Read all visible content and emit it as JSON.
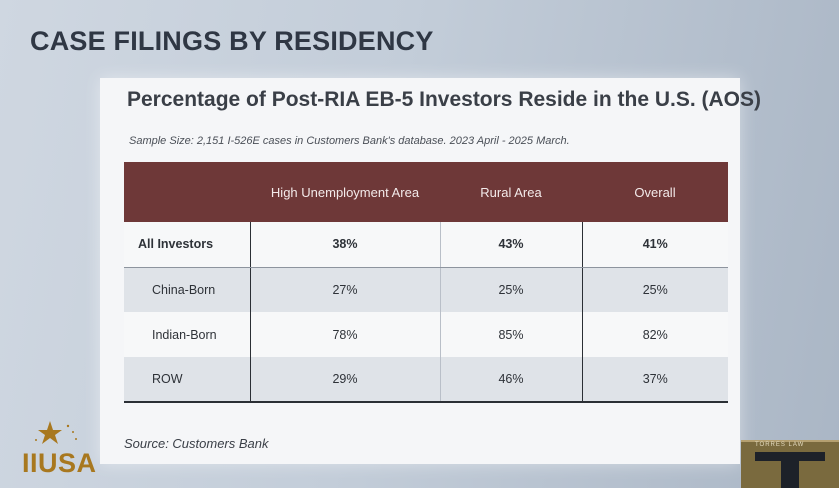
{
  "slide": {
    "heading": "CASE FILINGS BY RESIDENCY"
  },
  "card": {
    "title": "Percentage of Post-RIA EB-5 Investors Reside in the U.S. (AOS)",
    "subtitle": "Sample Size: 2,151 I-526E cases in Customers Bank's database. 2023 April - 2025 March.",
    "source": "Source: Customers Bank"
  },
  "table": {
    "headers": [
      "",
      "High Unemployment Area",
      "Rural Area",
      "Overall"
    ],
    "rows": [
      {
        "label": "All Investors",
        "values": [
          "38%",
          "43%",
          "41%"
        ]
      },
      {
        "label": "China-Born",
        "values": [
          "27%",
          "25%",
          "25%"
        ]
      },
      {
        "label": "Indian-Born",
        "values": [
          "78%",
          "85%",
          "82%"
        ]
      },
      {
        "label": "ROW",
        "values": [
          "29%",
          "46%",
          "37%"
        ]
      }
    ]
  },
  "logos": {
    "left_text": "IIUSA",
    "left_color": "#a8781f",
    "right_text": "TORRES LAW",
    "right_color": "#7a6a3e"
  },
  "colors": {
    "header_band": "#6e3838",
    "row_shade": "#dfe3e8"
  }
}
